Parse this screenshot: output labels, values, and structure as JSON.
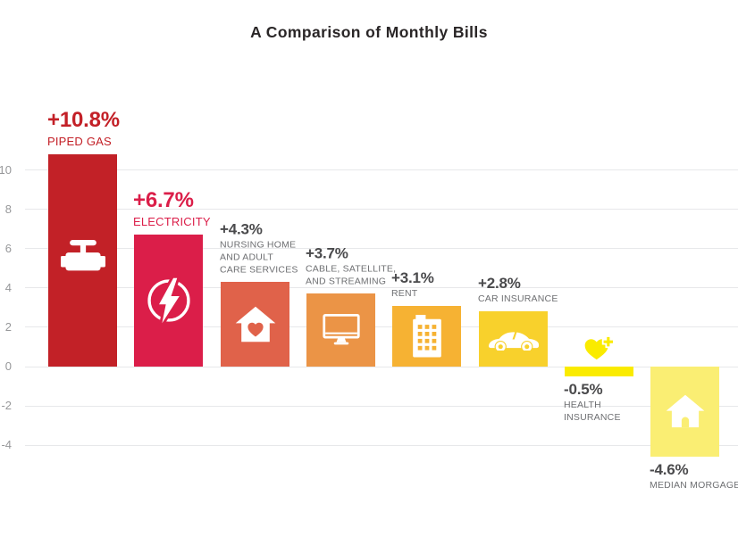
{
  "chart_data": {
    "type": "bar",
    "title": "A Comparison of Monthly Bills",
    "background_color": "#FFFFFF",
    "title_color": "#2A2627",
    "grid": true,
    "gridline_color": "#E7E8EA",
    "axis_label_color": "#97989A",
    "value_color_default": "#4A4A4C",
    "caption_color_default": "#6E6F72",
    "y_ticks": [
      10,
      8,
      6,
      4,
      2,
      0,
      -2,
      -4
    ],
    "ylim": [
      -5.5,
      12.5
    ],
    "legend": "none",
    "categories": [
      "PIPED GAS",
      "ELECTRICITY",
      "NURSING HOME AND ADULT CARE SERVICES",
      "CABLE, SATELLITE, AND STREAMING",
      "RENT",
      "CAR INSURANCE",
      "HEALTH INSURANCE",
      "MEDIAN MORGAGE"
    ],
    "values": [
      10.8,
      6.7,
      4.3,
      3.7,
      3.1,
      2.8,
      -0.5,
      -4.6
    ],
    "bars": [
      {
        "label": "PIPED GAS",
        "caption_lines": [
          "PIPED GAS"
        ],
        "value": 10.8,
        "value_label": "+10.8%",
        "color": "#C22127",
        "value_color": "#C32027",
        "caption_color": "#C32027",
        "icon": "gas-valve-icon"
      },
      {
        "label": "ELECTRICITY",
        "caption_lines": [
          "ELECTRICITY"
        ],
        "value": 6.7,
        "value_label": "+6.7%",
        "color": "#DB1E49",
        "value_color": "#DB1E49",
        "caption_color": "#DB1E49",
        "icon": "lightning-bolt-icon"
      },
      {
        "label": "NURSING HOME AND ADULT CARE SERVICES",
        "caption_lines": [
          "NURSING HOME",
          "AND ADULT",
          "CARE SERVICES"
        ],
        "value": 4.3,
        "value_label": "+4.3%",
        "color": "#E0624A",
        "value_color": "#4A4A4C",
        "caption_color": "#6E6F72",
        "icon": "house-heart-icon"
      },
      {
        "label": "CABLE, SATELLITE, AND STREAMING",
        "caption_lines": [
          "CABLE, SATELLITE,",
          "AND STREAMING"
        ],
        "value": 3.7,
        "value_label": "+3.7%",
        "color": "#EB9446",
        "value_color": "#4A4A4C",
        "caption_color": "#6E6F72",
        "icon": "monitor-icon"
      },
      {
        "label": "RENT",
        "caption_lines": [
          "RENT"
        ],
        "value": 3.1,
        "value_label": "+3.1%",
        "color": "#F6B233",
        "value_color": "#4A4A4C",
        "caption_color": "#6E6F72",
        "icon": "building-icon"
      },
      {
        "label": "CAR INSURANCE",
        "caption_lines": [
          "CAR INSURANCE"
        ],
        "value": 2.8,
        "value_label": "+2.8%",
        "color": "#F8D12C",
        "value_color": "#4A4A4C",
        "caption_color": "#6E6F72",
        "icon": "car-icon"
      },
      {
        "label": "HEALTH INSURANCE",
        "caption_lines": [
          "HEALTH",
          "INSURANCE"
        ],
        "value": -0.5,
        "value_label": "-0.5%",
        "color": "#FAEB00",
        "value_color": "#4A4A4C",
        "caption_color": "#6E6F72",
        "icon": "heart-plus-icon"
      },
      {
        "label": "MEDIAN MORGAGE",
        "caption_lines": [
          "MEDIAN MORGAGE"
        ],
        "value": -4.6,
        "value_label": "-4.6%",
        "color": "#FAEE73",
        "value_color": "#4A4A4C",
        "caption_color": "#6E6F72",
        "icon": "house-icon"
      }
    ]
  }
}
